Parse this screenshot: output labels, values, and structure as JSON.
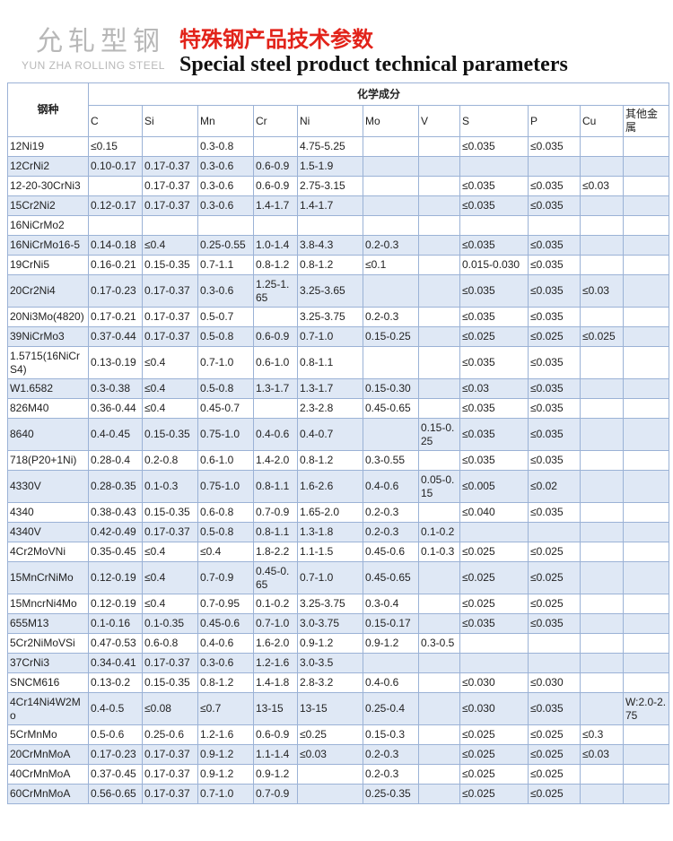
{
  "header": {
    "brand_cn": "允轧型钢",
    "brand_en": "YUN ZHA ROLLING STEEL",
    "title_cn": "特殊钢产品技术参数",
    "title_en": "Special steel product technical parameters"
  },
  "table": {
    "grade_header": "钢种",
    "composition_header": "化学成分",
    "columns": [
      "C",
      "Si",
      "Mn",
      "Cr",
      "Ni",
      "Mo",
      "V",
      "S",
      "P",
      "Cu",
      "其他金属"
    ],
    "rows": [
      [
        "12Ni19",
        "≤0.15",
        "",
        "0.3-0.8",
        "",
        "4.75-5.25",
        "",
        "",
        "≤0.035",
        "≤0.035",
        "",
        ""
      ],
      [
        "12CrNi2",
        "0.10-0.17",
        "0.17-0.37",
        "0.3-0.6",
        "0.6-0.9",
        "1.5-1.9",
        "",
        "",
        "",
        "",
        "",
        ""
      ],
      [
        "12-20-30CrNi3",
        "",
        "0.17-0.37",
        "0.3-0.6",
        "0.6-0.9",
        "2.75-3.15",
        "",
        "",
        "≤0.035",
        "≤0.035",
        "≤0.03",
        ""
      ],
      [
        "15Cr2Ni2",
        "0.12-0.17",
        "0.17-0.37",
        "0.3-0.6",
        "1.4-1.7",
        "1.4-1.7",
        "",
        "",
        "≤0.035",
        "≤0.035",
        "",
        ""
      ],
      [
        "16NiCrMo2",
        "",
        "",
        "",
        "",
        "",
        "",
        "",
        "",
        "",
        "",
        ""
      ],
      [
        "16NiCrMo16-5",
        "0.14-0.18",
        "≤0.4",
        "0.25-0.55",
        "1.0-1.4",
        "3.8-4.3",
        "0.2-0.3",
        "",
        "≤0.035",
        "≤0.035",
        "",
        ""
      ],
      [
        "19CrNi5",
        "0.16-0.21",
        "0.15-0.35",
        "0.7-1.1",
        "0.8-1.2",
        "0.8-1.2",
        "≤0.1",
        "",
        "0.015-0.030",
        "≤0.035",
        "",
        ""
      ],
      [
        "20Cr2Ni4",
        "0.17-0.23",
        "0.17-0.37",
        "0.3-0.6",
        "1.25-1.65",
        "3.25-3.65",
        "",
        "",
        "≤0.035",
        "≤0.035",
        "≤0.03",
        ""
      ],
      [
        "20Ni3Mo(4820)",
        "0.17-0.21",
        "0.17-0.37",
        "0.5-0.7",
        "",
        "3.25-3.75",
        "0.2-0.3",
        "",
        "≤0.035",
        "≤0.035",
        "",
        ""
      ],
      [
        "39NiCrMo3",
        "0.37-0.44",
        "0.17-0.37",
        "0.5-0.8",
        "0.6-0.9",
        "0.7-1.0",
        "0.15-0.25",
        "",
        "≤0.025",
        "≤0.025",
        "≤0.025",
        ""
      ],
      [
        "1.5715(16NiCrS4)",
        "0.13-0.19",
        "≤0.4",
        "0.7-1.0",
        "0.6-1.0",
        "0.8-1.1",
        "",
        "",
        "≤0.035",
        "≤0.035",
        "",
        ""
      ],
      [
        "W1.6582",
        "0.3-0.38",
        "≤0.4",
        "0.5-0.8",
        "1.3-1.7",
        "1.3-1.7",
        "0.15-0.30",
        "",
        "≤0.03",
        "≤0.035",
        "",
        ""
      ],
      [
        "826M40",
        "0.36-0.44",
        "≤0.4",
        "0.45-0.7",
        "",
        "2.3-2.8",
        "0.45-0.65",
        "",
        "≤0.035",
        "≤0.035",
        "",
        ""
      ],
      [
        "8640",
        "0.4-0.45",
        "0.15-0.35",
        "0.75-1.0",
        "0.4-0.6",
        "0.4-0.7",
        "",
        "0.15-0.25",
        "≤0.035",
        "≤0.035",
        "",
        ""
      ],
      [
        "718(P20+1Ni)",
        "0.28-0.4",
        "0.2-0.8",
        "0.6-1.0",
        "1.4-2.0",
        "0.8-1.2",
        "0.3-0.55",
        "",
        "≤0.035",
        "≤0.035",
        "",
        ""
      ],
      [
        "4330V",
        "0.28-0.35",
        "0.1-0.3",
        "0.75-1.0",
        "0.8-1.1",
        "1.6-2.6",
        "0.4-0.6",
        "0.05-0.15",
        "≤0.005",
        "≤0.02",
        "",
        ""
      ],
      [
        "4340",
        "0.38-0.43",
        "0.15-0.35",
        "0.6-0.8",
        "0.7-0.9",
        "1.65-2.0",
        "0.2-0.3",
        "",
        "≤0.040",
        "≤0.035",
        "",
        ""
      ],
      [
        "4340V",
        "0.42-0.49",
        "0.17-0.37",
        "0.5-0.8",
        "0.8-1.1",
        "1.3-1.8",
        "0.2-0.3",
        "0.1-0.2",
        "",
        "",
        "",
        ""
      ],
      [
        "4Cr2MoVNi",
        "0.35-0.45",
        "≤0.4",
        "≤0.4",
        "1.8-2.2",
        "1.1-1.5",
        "0.45-0.6",
        "0.1-0.3",
        "≤0.025",
        "≤0.025",
        "",
        ""
      ],
      [
        "15MnCrNiMo",
        "0.12-0.19",
        "≤0.4",
        "0.7-0.9",
        "0.45-0.65",
        "0.7-1.0",
        "0.45-0.65",
        "",
        "≤0.025",
        "≤0.025",
        "",
        ""
      ],
      [
        "15MncrNi4Mo",
        "0.12-0.19",
        "≤0.4",
        "0.7-0.95",
        "0.1-0.2",
        "3.25-3.75",
        "0.3-0.4",
        "",
        "≤0.025",
        "≤0.025",
        "",
        ""
      ],
      [
        "655M13",
        "0.1-0.16",
        "0.1-0.35",
        "0.45-0.6",
        "0.7-1.0",
        "3.0-3.75",
        "0.15-0.17",
        "",
        "≤0.035",
        "≤0.035",
        "",
        ""
      ],
      [
        "5Cr2NiMoVSi",
        "0.47-0.53",
        "0.6-0.8",
        "0.4-0.6",
        "1.6-2.0",
        "0.9-1.2",
        "0.9-1.2",
        "0.3-0.5",
        "",
        "",
        "",
        ""
      ],
      [
        "37CrNi3",
        "0.34-0.41",
        "0.17-0.37",
        "0.3-0.6",
        "1.2-1.6",
        "3.0-3.5",
        "",
        "",
        "",
        "",
        "",
        ""
      ],
      [
        "SNCM616",
        "0.13-0.2",
        "0.15-0.35",
        "0.8-1.2",
        "1.4-1.8",
        "2.8-3.2",
        "0.4-0.6",
        "",
        "≤0.030",
        "≤0.030",
        "",
        ""
      ],
      [
        "4Cr14Ni4W2Mo",
        "0.4-0.5",
        "≤0.08",
        "≤0.7",
        "13-15",
        "13-15",
        "0.25-0.4",
        "",
        "≤0.030",
        "≤0.035",
        "",
        "W:2.0-2.75"
      ],
      [
        "5CrMnMo",
        "0.5-0.6",
        "0.25-0.6",
        "1.2-1.6",
        "0.6-0.9",
        "≤0.25",
        "0.15-0.3",
        "",
        "≤0.025",
        "≤0.025",
        "≤0.3",
        ""
      ],
      [
        "20CrMnMoA",
        "0.17-0.23",
        "0.17-0.37",
        "0.9-1.2",
        "1.1-1.4",
        "≤0.03",
        "0.2-0.3",
        "",
        "≤0.025",
        "≤0.025",
        "≤0.03",
        ""
      ],
      [
        "40CrMnMoA",
        "0.37-0.45",
        "0.17-0.37",
        "0.9-1.2",
        "0.9-1.2",
        "",
        "0.2-0.3",
        "",
        "≤0.025",
        "≤0.025",
        "",
        ""
      ],
      [
        "60CrMnMoA",
        "0.56-0.65",
        "0.17-0.37",
        "0.7-1.0",
        "0.7-0.9",
        "",
        "0.25-0.35",
        "",
        "≤0.025",
        "≤0.025",
        "",
        ""
      ]
    ]
  }
}
